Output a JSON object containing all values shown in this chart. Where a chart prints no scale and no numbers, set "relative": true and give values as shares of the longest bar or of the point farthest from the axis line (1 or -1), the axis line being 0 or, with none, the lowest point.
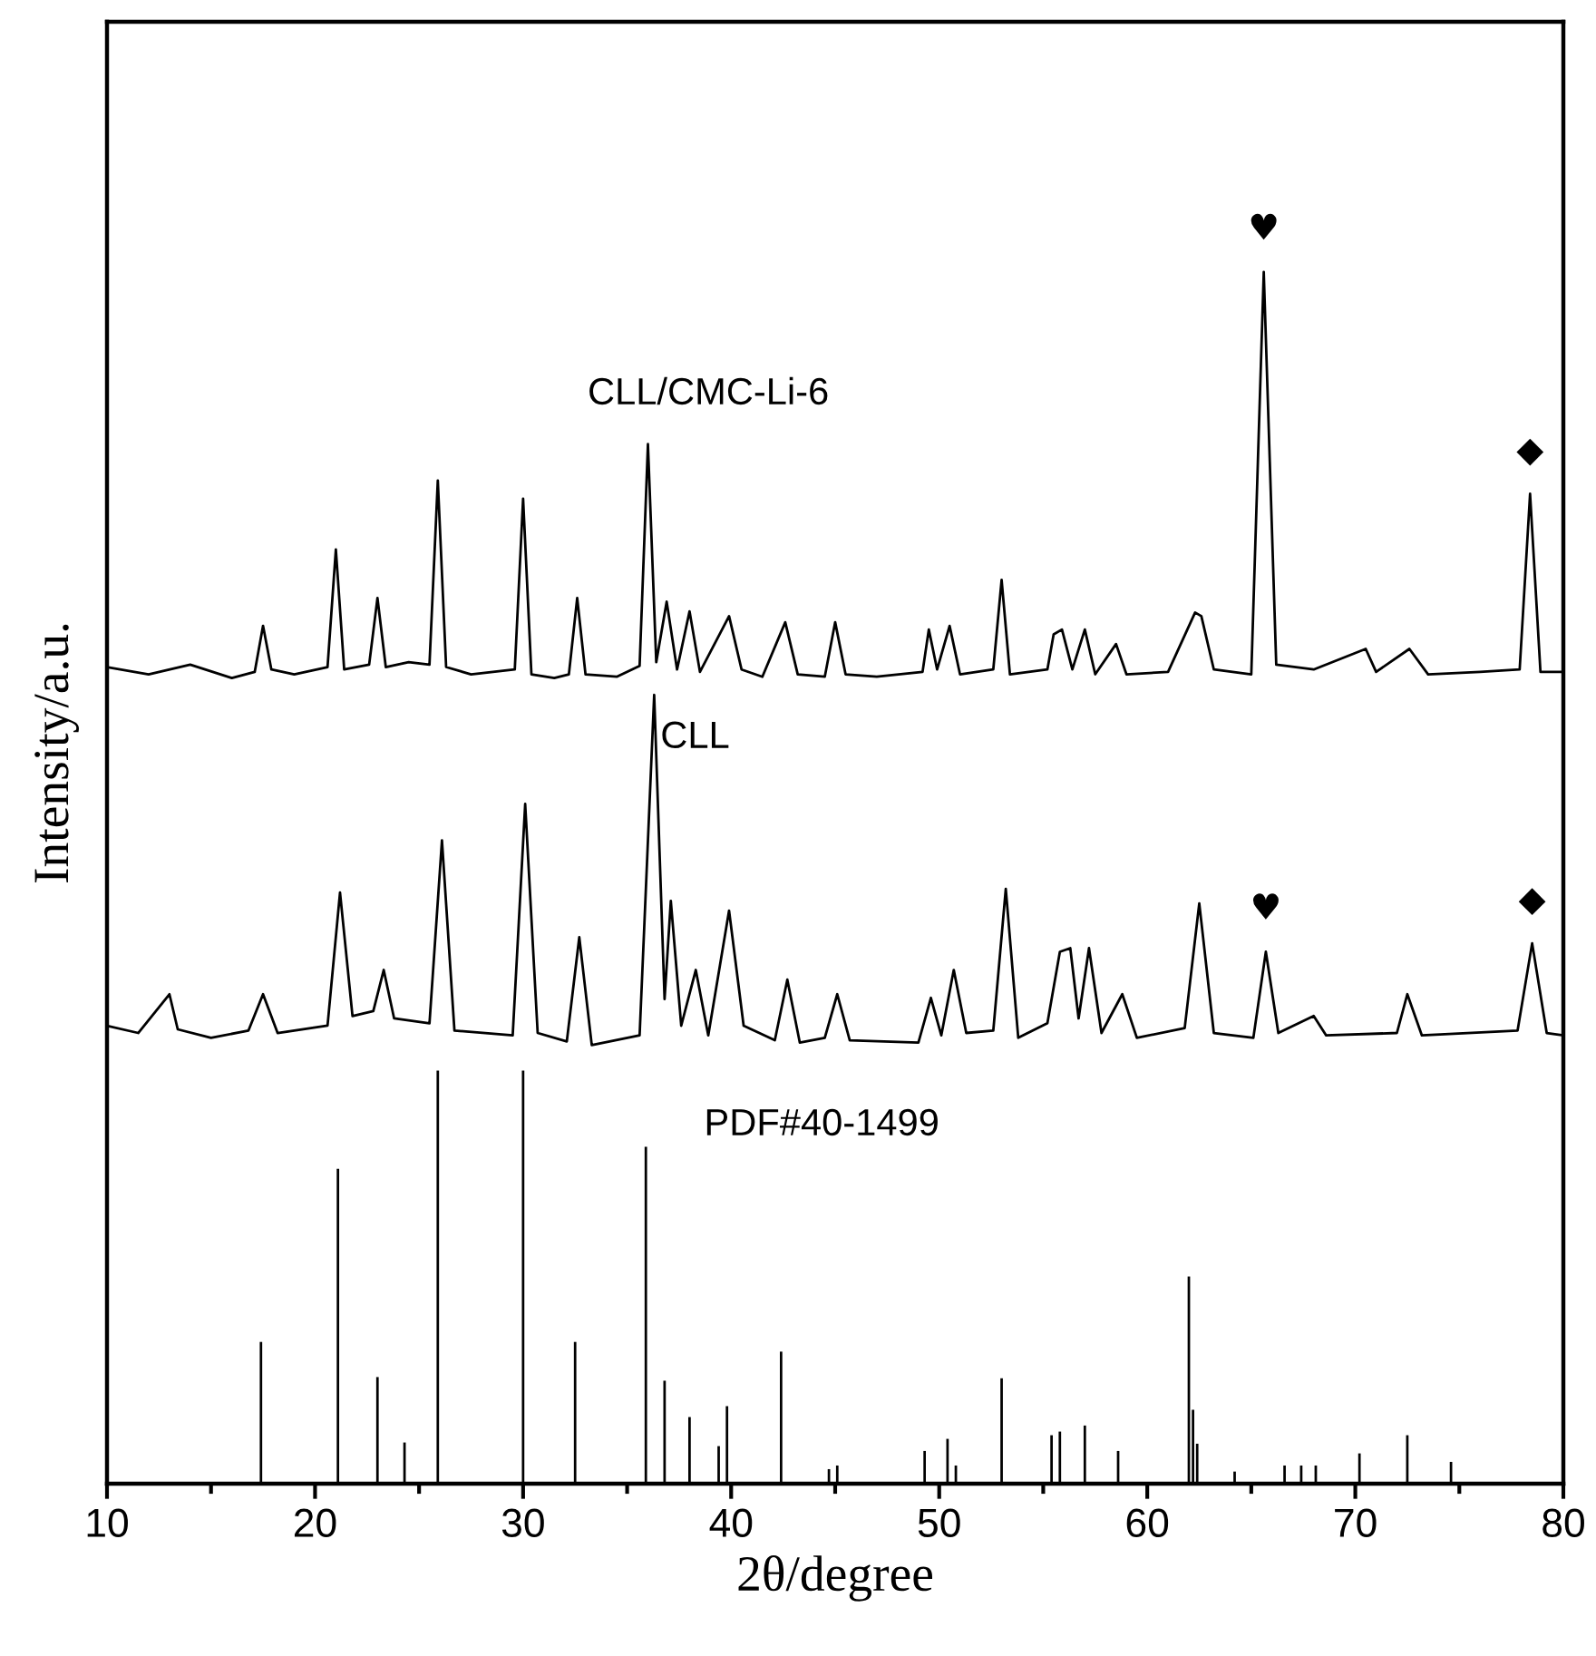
{
  "chart_data": {
    "type": "line",
    "relative": true,
    "xlabel": "2θ/degree",
    "ylabel": "Intensity/a.u.",
    "xlim": [
      10,
      80
    ],
    "xticks": [
      10,
      {
        "value": 15,
        "label": null
      },
      20,
      {
        "value": 25,
        "label": null
      },
      30,
      {
        "value": 35,
        "label": null
      },
      40,
      {
        "value": 45,
        "label": null
      },
      50,
      {
        "value": 55,
        "label": null
      },
      60,
      {
        "value": 65,
        "label": null
      },
      70,
      {
        "value": 75,
        "label": null
      },
      80
    ],
    "tick_labels": "x",
    "grid": false,
    "legend": false,
    "marker": "none",
    "line_style": "solid",
    "series": [
      {
        "name": "CLL/CMC-Li-6",
        "color": "#000000",
        "x": [
          10,
          12,
          14,
          16,
          17.1,
          17.5,
          17.9,
          19,
          20.6,
          21.0,
          21.4,
          22.6,
          23.0,
          23.4,
          24.5,
          25.5,
          25.9,
          26.3,
          27.5,
          29.6,
          30.0,
          30.4,
          31.5,
          32.2,
          32.6,
          33.0,
          34.5,
          35.6,
          36.0,
          36.4,
          36.9,
          37.4,
          38.0,
          38.5,
          39.9,
          40.5,
          41.5,
          42.6,
          43.2,
          44.5,
          45.0,
          45.5,
          47,
          49.2,
          49.5,
          49.9,
          50.5,
          51,
          52.6,
          53.0,
          53.4,
          55.2,
          55.5,
          55.9,
          56.4,
          57.0,
          57.5,
          58.5,
          59,
          61,
          62.3,
          62.6,
          63.2,
          65.0,
          65.6,
          66.2,
          68,
          70.5,
          71,
          72.6,
          73.5,
          76,
          77.9,
          78.4,
          78.9,
          80
        ],
        "values": [
          0.674,
          0.668,
          0.676,
          0.665,
          0.67,
          0.708,
          0.672,
          0.668,
          0.674,
          0.771,
          0.672,
          0.676,
          0.731,
          0.674,
          0.678,
          0.676,
          0.828,
          0.674,
          0.668,
          0.672,
          0.813,
          0.668,
          0.665,
          0.668,
          0.731,
          0.668,
          0.666,
          0.675,
          0.858,
          0.678,
          0.728,
          0.672,
          0.72,
          0.67,
          0.716,
          0.672,
          0.666,
          0.711,
          0.668,
          0.666,
          0.711,
          0.668,
          0.666,
          0.67,
          0.705,
          0.672,
          0.708,
          0.668,
          0.672,
          0.746,
          0.668,
          0.672,
          0.701,
          0.705,
          0.672,
          0.705,
          0.668,
          0.693,
          0.668,
          0.67,
          0.719,
          0.716,
          0.672,
          0.668,
          1.0,
          0.676,
          0.672,
          0.689,
          0.67,
          0.689,
          0.668,
          0.67,
          0.672,
          0.817,
          0.67,
          0.67
        ]
      },
      {
        "name": "CLL",
        "color": "#000000",
        "x": [
          10,
          11.5,
          13,
          13.4,
          15,
          16.8,
          17.5,
          18.2,
          20.6,
          21.2,
          21.8,
          22.8,
          23.3,
          23.8,
          25.5,
          26.1,
          26.7,
          29.5,
          30.1,
          30.7,
          32.1,
          32.7,
          33.3,
          35.6,
          36.3,
          36.8,
          37.1,
          37.6,
          38.3,
          38.9,
          39.9,
          40.6,
          42.1,
          42.7,
          43.3,
          44.5,
          45.1,
          45.7,
          49.0,
          49.6,
          50.1,
          50.7,
          51.3,
          52.6,
          53.2,
          53.8,
          55.2,
          55.8,
          56.3,
          56.7,
          57.2,
          57.8,
          58.8,
          59.5,
          61.8,
          62.5,
          63.2,
          65.1,
          65.7,
          66.3,
          68,
          68.6,
          72.0,
          72.5,
          73.2,
          77.8,
          78.5,
          79.2,
          80
        ],
        "values": [
          0.378,
          0.372,
          0.404,
          0.375,
          0.368,
          0.374,
          0.404,
          0.372,
          0.378,
          0.488,
          0.386,
          0.39,
          0.424,
          0.384,
          0.38,
          0.531,
          0.374,
          0.37,
          0.561,
          0.372,
          0.365,
          0.451,
          0.362,
          0.37,
          0.651,
          0.4,
          0.481,
          0.378,
          0.424,
          0.37,
          0.473,
          0.378,
          0.366,
          0.416,
          0.364,
          0.368,
          0.404,
          0.366,
          0.364,
          0.401,
          0.37,
          0.424,
          0.372,
          0.374,
          0.491,
          0.368,
          0.38,
          0.439,
          0.442,
          0.384,
          0.442,
          0.372,
          0.404,
          0.368,
          0.376,
          0.479,
          0.372,
          0.368,
          0.439,
          0.372,
          0.386,
          0.37,
          0.372,
          0.404,
          0.37,
          0.374,
          0.446,
          0.372,
          0.37
        ]
      },
      {
        "name": "PDF#40-1499",
        "type": "bar",
        "color": "#000000",
        "x": [
          17.4,
          21.1,
          23.0,
          24.3,
          25.9,
          30.0,
          32.5,
          35.9,
          36.8,
          38.0,
          39.4,
          39.8,
          42.4,
          44.7,
          45.1,
          49.3,
          50.4,
          50.8,
          53.0,
          55.4,
          55.8,
          57.0,
          58.6,
          62.0,
          62.2,
          62.4,
          64.2,
          66.6,
          67.4,
          68.1,
          70.2,
          72.5,
          74.6
        ],
        "values": [
          0.117,
          0.26,
          0.088,
          0.034,
          0.341,
          0.341,
          0.117,
          0.278,
          0.085,
          0.055,
          0.031,
          0.064,
          0.109,
          0.012,
          0.015,
          0.027,
          0.037,
          0.015,
          0.087,
          0.04,
          0.043,
          0.048,
          0.027,
          0.171,
          0.061,
          0.033,
          0.01,
          0.015,
          0.015,
          0.015,
          0.025,
          0.04,
          0.018
        ]
      }
    ],
    "annotations": [
      {
        "text": "♥",
        "x": 65.6,
        "y": 1.0
      },
      {
        "text": "◆",
        "x": 78.4,
        "y": 0.817
      },
      {
        "text": "♥",
        "x": 65.7,
        "y": 0.439
      },
      {
        "text": "◆",
        "x": 78.5,
        "y": 0.446
      }
    ]
  }
}
